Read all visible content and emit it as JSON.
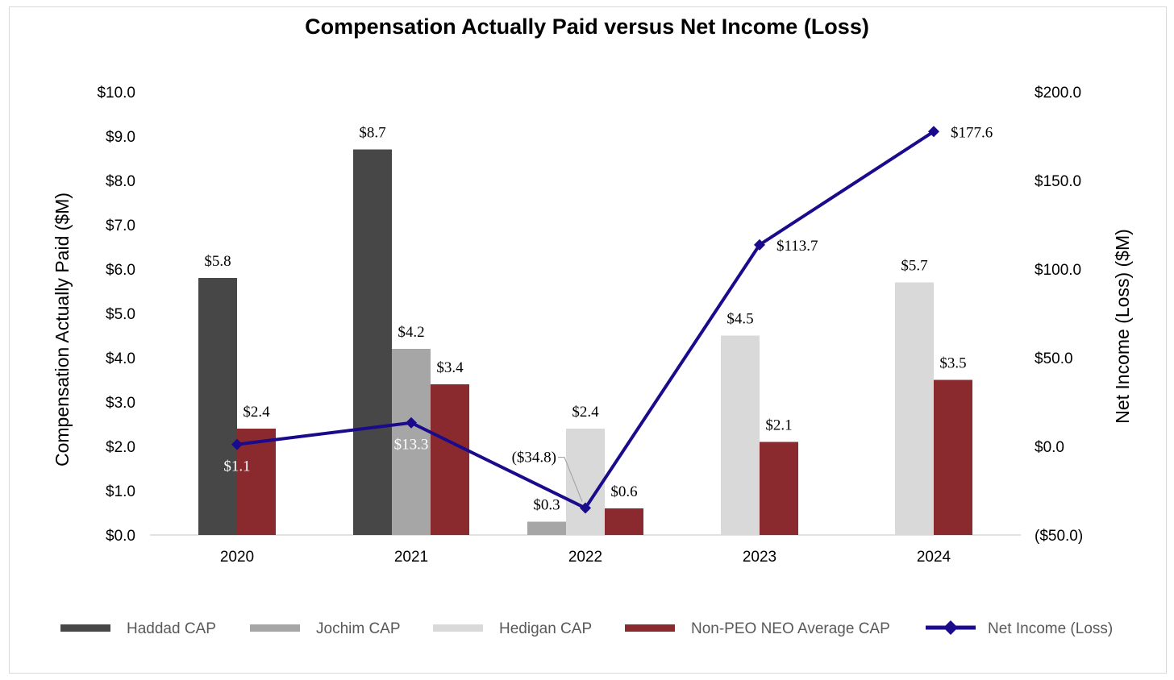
{
  "chart_data": {
    "type": "bar",
    "title": "Compensation Actually Paid versus Net Income (Loss)",
    "categories": [
      "2020",
      "2021",
      "2022",
      "2023",
      "2024"
    ],
    "ylabel": "Compensation Actually Paid ($M)",
    "y2label": "Net Income (Loss) ($M)",
    "ylim": [
      0,
      10
    ],
    "y2lim": [
      -50,
      200
    ],
    "yticks": [
      "$0.0",
      "$1.0",
      "$2.0",
      "$3.0",
      "$4.0",
      "$5.0",
      "$6.0",
      "$7.0",
      "$8.0",
      "$9.0",
      "$10.0"
    ],
    "y2ticks": [
      "($50.0)",
      "$0.0",
      "$50.0",
      "$100.0",
      "$150.0",
      "$200.0"
    ],
    "series": [
      {
        "name": "Haddad CAP",
        "color": "#474747",
        "values": [
          5.8,
          8.7,
          null,
          null,
          null
        ],
        "labels": [
          "$5.8",
          "$8.7",
          null,
          null,
          null
        ]
      },
      {
        "name": "Jochim CAP",
        "color": "#a6a6a6",
        "values": [
          null,
          4.2,
          0.3,
          null,
          null
        ],
        "labels": [
          null,
          "$4.2",
          "$0.3",
          null,
          null
        ]
      },
      {
        "name": "Hedigan CAP",
        "color": "#d9d9d9",
        "values": [
          null,
          null,
          2.4,
          4.5,
          5.7
        ],
        "labels": [
          null,
          null,
          "$2.4",
          "$4.5",
          "$5.7"
        ]
      },
      {
        "name": "Non-PEO NEO Average CAP",
        "color": "#8b2a2e",
        "values": [
          2.4,
          3.4,
          0.6,
          2.1,
          3.5
        ],
        "labels": [
          "$2.4",
          "$3.4",
          "$0.6",
          "$2.1",
          "$3.5"
        ]
      }
    ],
    "line_series": {
      "name": "Net Income (Loss)",
      "color": "#1a0a8c",
      "axis": "secondary",
      "values": [
        1.1,
        13.3,
        -34.8,
        113.7,
        177.6
      ],
      "labels": [
        "$1.1",
        "$13.3",
        "($34.8)",
        "$113.7",
        "$177.6"
      ]
    },
    "legend": "bottom",
    "grid": false
  }
}
